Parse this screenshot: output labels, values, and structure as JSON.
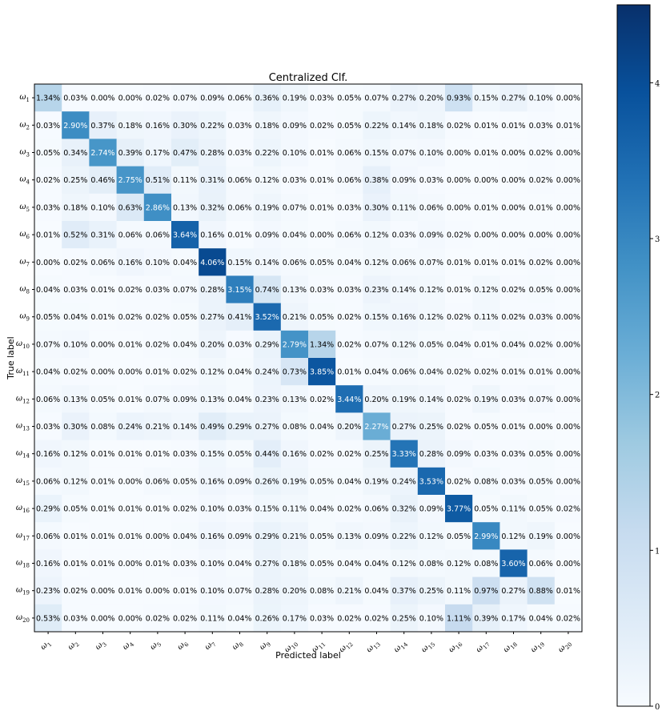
{
  "chart_data": {
    "type": "heatmap",
    "title": "Centralized Clf.",
    "xlabel": "Predicted label",
    "ylabel": "True label",
    "value_suffix": "%",
    "class_base": "ω",
    "row_labels": [
      "1",
      "2",
      "3",
      "4",
      "5",
      "6",
      "7",
      "8",
      "9",
      "10",
      "11",
      "12",
      "13",
      "14",
      "15",
      "16",
      "17",
      "18",
      "19",
      "20"
    ],
    "col_labels": [
      "1",
      "2",
      "3",
      "4",
      "5",
      "6",
      "7",
      "8",
      "9",
      "10",
      "11",
      "12",
      "13",
      "14",
      "15",
      "16",
      "17",
      "18",
      "19",
      "20"
    ],
    "values": [
      [
        1.34,
        0.03,
        0.0,
        0.0,
        0.02,
        0.07,
        0.09,
        0.06,
        0.36,
        0.19,
        0.03,
        0.05,
        0.07,
        0.27,
        0.2,
        0.93,
        0.15,
        0.27,
        0.1,
        0.0
      ],
      [
        0.03,
        2.9,
        0.37,
        0.18,
        0.16,
        0.3,
        0.22,
        0.03,
        0.18,
        0.09,
        0.02,
        0.05,
        0.22,
        0.14,
        0.18,
        0.02,
        0.01,
        0.01,
        0.03,
        0.01
      ],
      [
        0.05,
        0.34,
        2.74,
        0.39,
        0.17,
        0.47,
        0.28,
        0.03,
        0.22,
        0.1,
        0.01,
        0.06,
        0.15,
        0.07,
        0.1,
        0.0,
        0.01,
        0.0,
        0.02,
        0.0
      ],
      [
        0.02,
        0.25,
        0.46,
        2.75,
        0.51,
        0.11,
        0.31,
        0.06,
        0.12,
        0.03,
        0.01,
        0.06,
        0.38,
        0.09,
        0.03,
        0.0,
        0.0,
        0.0,
        0.02,
        0.0
      ],
      [
        0.03,
        0.18,
        0.1,
        0.63,
        2.86,
        0.13,
        0.32,
        0.06,
        0.19,
        0.07,
        0.01,
        0.03,
        0.3,
        0.11,
        0.06,
        0.0,
        0.01,
        0.0,
        0.01,
        0.0
      ],
      [
        0.01,
        0.52,
        0.31,
        0.06,
        0.06,
        3.64,
        0.16,
        0.01,
        0.09,
        0.04,
        0.0,
        0.06,
        0.12,
        0.03,
        0.09,
        0.02,
        0.0,
        0.0,
        0.0,
        0.0
      ],
      [
        0.0,
        0.02,
        0.06,
        0.16,
        0.1,
        0.04,
        4.06,
        0.15,
        0.14,
        0.06,
        0.05,
        0.04,
        0.12,
        0.06,
        0.07,
        0.01,
        0.01,
        0.01,
        0.02,
        0.0
      ],
      [
        0.04,
        0.03,
        0.01,
        0.02,
        0.03,
        0.07,
        0.28,
        3.15,
        0.74,
        0.13,
        0.03,
        0.03,
        0.23,
        0.14,
        0.12,
        0.01,
        0.12,
        0.02,
        0.05,
        0.0
      ],
      [
        0.05,
        0.04,
        0.01,
        0.02,
        0.02,
        0.05,
        0.27,
        0.41,
        3.52,
        0.21,
        0.05,
        0.02,
        0.15,
        0.16,
        0.12,
        0.02,
        0.11,
        0.02,
        0.03,
        0.0
      ],
      [
        0.07,
        0.1,
        0.0,
        0.01,
        0.02,
        0.04,
        0.2,
        0.03,
        0.29,
        2.79,
        1.34,
        0.02,
        0.07,
        0.12,
        0.05,
        0.04,
        0.01,
        0.04,
        0.02,
        0.0
      ],
      [
        0.04,
        0.02,
        0.0,
        0.0,
        0.01,
        0.02,
        0.12,
        0.04,
        0.24,
        0.73,
        3.85,
        0.01,
        0.04,
        0.06,
        0.04,
        0.02,
        0.02,
        0.01,
        0.01,
        0.0
      ],
      [
        0.06,
        0.13,
        0.05,
        0.01,
        0.07,
        0.09,
        0.13,
        0.04,
        0.23,
        0.13,
        0.02,
        3.44,
        0.2,
        0.19,
        0.14,
        0.02,
        0.19,
        0.03,
        0.07,
        0.0
      ],
      [
        0.03,
        0.3,
        0.08,
        0.24,
        0.21,
        0.14,
        0.49,
        0.29,
        0.27,
        0.08,
        0.04,
        0.2,
        2.27,
        0.27,
        0.25,
        0.02,
        0.05,
        0.01,
        0.0,
        0.0
      ],
      [
        0.16,
        0.12,
        0.01,
        0.01,
        0.01,
        0.03,
        0.15,
        0.05,
        0.44,
        0.16,
        0.02,
        0.02,
        0.25,
        3.33,
        0.28,
        0.09,
        0.03,
        0.03,
        0.05,
        0.0
      ],
      [
        0.06,
        0.12,
        0.01,
        0.0,
        0.06,
        0.05,
        0.16,
        0.09,
        0.26,
        0.19,
        0.05,
        0.04,
        0.19,
        0.24,
        3.53,
        0.02,
        0.08,
        0.03,
        0.05,
        0.0
      ],
      [
        0.29,
        0.05,
        0.01,
        0.01,
        0.01,
        0.02,
        0.1,
        0.03,
        0.15,
        0.11,
        0.04,
        0.02,
        0.06,
        0.32,
        0.09,
        3.77,
        0.05,
        0.11,
        0.05,
        0.02
      ],
      [
        0.06,
        0.01,
        0.01,
        0.01,
        0.0,
        0.04,
        0.16,
        0.09,
        0.29,
        0.21,
        0.05,
        0.13,
        0.09,
        0.22,
        0.12,
        0.05,
        2.99,
        0.12,
        0.19,
        0.0
      ],
      [
        0.16,
        0.01,
        0.01,
        0.0,
        0.01,
        0.03,
        0.1,
        0.04,
        0.27,
        0.18,
        0.05,
        0.04,
        0.04,
        0.12,
        0.08,
        0.12,
        0.08,
        3.6,
        0.06,
        0.0
      ],
      [
        0.23,
        0.02,
        0.0,
        0.01,
        0.0,
        0.01,
        0.1,
        0.07,
        0.28,
        0.2,
        0.08,
        0.21,
        0.04,
        0.37,
        0.25,
        0.11,
        0.97,
        0.27,
        0.88,
        0.01
      ],
      [
        0.53,
        0.03,
        0.0,
        0.0,
        0.02,
        0.02,
        0.11,
        0.04,
        0.26,
        0.17,
        0.03,
        0.02,
        0.02,
        0.25,
        0.1,
        1.11,
        0.39,
        0.17,
        0.04,
        0.02
      ]
    ],
    "colorbar": {
      "colormap": "Blues",
      "min": 0,
      "max": 4.5,
      "ticks": [
        "0",
        "1",
        "2",
        "3",
        "4"
      ]
    },
    "grid": false,
    "legend": "none"
  }
}
